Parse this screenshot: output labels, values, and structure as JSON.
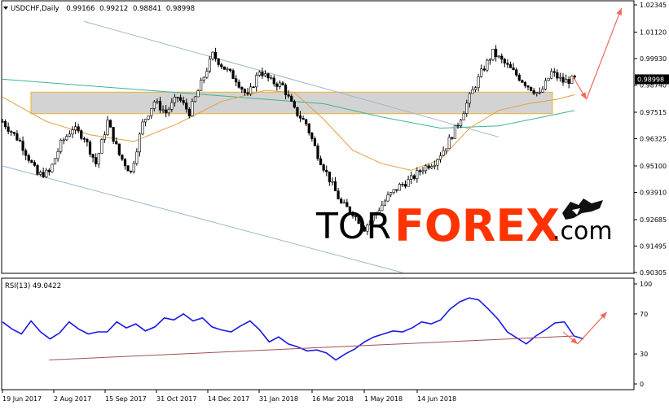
{
  "chart_data": [
    {
      "type": "candlestick",
      "header": {
        "symbol": "USDCHF,Daily",
        "open": "0.99166",
        "high": "0.99212",
        "low": "0.98841",
        "close": "0.98998"
      },
      "current_price_label": "0.98998",
      "y_ticks": [
        "1.02345",
        "1.01120",
        "0.99930",
        "0.98740",
        "0.97515",
        "0.96325",
        "0.95100",
        "0.93910",
        "0.92685",
        "0.91495",
        "0.90305"
      ],
      "ylim": [
        0.90305,
        1.02345
      ],
      "x_ticks": [
        "19 Jun 2017",
        "2 Aug 2017",
        "15 Sep 2017",
        "31 Oct 2017",
        "14 Dec 2017",
        "31 Jan 2018",
        "16 Mar 2018",
        "1 May 2018",
        "14 Jun 2018"
      ],
      "price_path": [
        [
          0,
          0.971
        ],
        [
          6,
          0.962
        ],
        [
          12,
          0.947
        ],
        [
          16,
          0.948
        ],
        [
          20,
          0.961
        ],
        [
          24,
          0.968
        ],
        [
          28,
          0.964
        ],
        [
          32,
          0.952
        ],
        [
          36,
          0.971
        ],
        [
          40,
          0.956
        ],
        [
          44,
          0.948
        ],
        [
          48,
          0.97
        ],
        [
          52,
          0.98
        ],
        [
          56,
          0.975
        ],
        [
          60,
          0.982
        ],
        [
          64,
          0.975
        ],
        [
          68,
          0.988
        ],
        [
          72,
          1.001
        ],
        [
          76,
          0.995
        ],
        [
          80,
          0.99
        ],
        [
          84,
          0.982
        ],
        [
          88,
          0.994
        ],
        [
          92,
          0.989
        ],
        [
          96,
          0.987
        ],
        [
          100,
          0.976
        ],
        [
          104,
          0.97
        ],
        [
          108,
          0.956
        ],
        [
          112,
          0.945
        ],
        [
          116,
          0.934
        ],
        [
          120,
          0.93
        ],
        [
          124,
          0.923
        ],
        [
          128,
          0.93
        ],
        [
          132,
          0.937
        ],
        [
          136,
          0.942
        ],
        [
          140,
          0.945
        ],
        [
          144,
          0.95
        ],
        [
          148,
          0.953
        ],
        [
          152,
          0.96
        ],
        [
          156,
          0.97
        ],
        [
          160,
          0.982
        ],
        [
          164,
          0.993
        ],
        [
          168,
          1.002
        ],
        [
          172,
          0.997
        ],
        [
          176,
          0.992
        ],
        [
          180,
          0.987
        ],
        [
          184,
          0.983
        ],
        [
          188,
          0.993
        ],
        [
          192,
          0.989
        ],
        [
          196,
          0.99
        ]
      ],
      "ma_long": [
        [
          0,
          0.99
        ],
        [
          30,
          0.987
        ],
        [
          60,
          0.984
        ],
        [
          90,
          0.981
        ],
        [
          110,
          0.979
        ],
        [
          130,
          0.973
        ],
        [
          150,
          0.968
        ],
        [
          170,
          0.969
        ],
        [
          185,
          0.973
        ],
        [
          196,
          0.976
        ]
      ],
      "ma_short": [
        [
          0,
          0.982
        ],
        [
          15,
          0.971
        ],
        [
          30,
          0.965
        ],
        [
          45,
          0.962
        ],
        [
          60,
          0.97
        ],
        [
          75,
          0.98
        ],
        [
          90,
          0.985
        ],
        [
          100,
          0.984
        ],
        [
          110,
          0.972
        ],
        [
          120,
          0.958
        ],
        [
          130,
          0.952
        ],
        [
          140,
          0.949
        ],
        [
          150,
          0.954
        ],
        [
          160,
          0.968
        ],
        [
          170,
          0.976
        ],
        [
          180,
          0.979
        ],
        [
          190,
          0.981
        ],
        [
          196,
          0.983
        ]
      ],
      "channel_upper": [
        [
          28,
          1.016
        ],
        [
          170,
          0.964
        ]
      ],
      "channel_lower": [
        [
          0,
          0.951
        ],
        [
          137,
          0.903
        ]
      ],
      "support_zone": [
        0.9745,
        0.9842
      ],
      "forecast_arrow_down": [
        [
          195,
          0.992
        ],
        [
          200,
          0.981
        ]
      ],
      "forecast_arrow_up": [
        [
          200,
          0.981
        ],
        [
          212,
          1.022
        ]
      ]
    },
    {
      "type": "line",
      "title": "RSI(13) 49.0422",
      "y_ticks": [
        "100",
        "70",
        "30",
        "0"
      ],
      "ylim": [
        0,
        100
      ],
      "values": [
        62,
        55,
        50,
        63,
        52,
        45,
        51,
        62,
        55,
        50,
        52,
        52,
        62,
        56,
        60,
        53,
        57,
        66,
        64,
        70,
        63,
        66,
        57,
        54,
        52,
        58,
        63,
        54,
        42,
        47,
        40,
        37,
        33,
        34,
        31,
        24,
        30,
        35,
        42,
        47,
        50,
        53,
        52,
        56,
        62,
        60,
        64,
        75,
        82,
        86,
        84,
        75,
        65,
        52,
        46,
        40,
        48,
        54,
        61,
        62,
        48,
        45
      ],
      "support_line": [
        [
          16,
          24
        ],
        [
          196,
          48
        ]
      ],
      "forecast_arrow_down": [
        [
          192,
          52
        ],
        [
          197,
          40
        ]
      ],
      "forecast_arrow_up": [
        [
          197,
          40
        ],
        [
          207,
          72
        ]
      ]
    }
  ],
  "watermark": {
    "prefix": "TOR",
    "main": "FOREX",
    "suffix": ".com"
  }
}
